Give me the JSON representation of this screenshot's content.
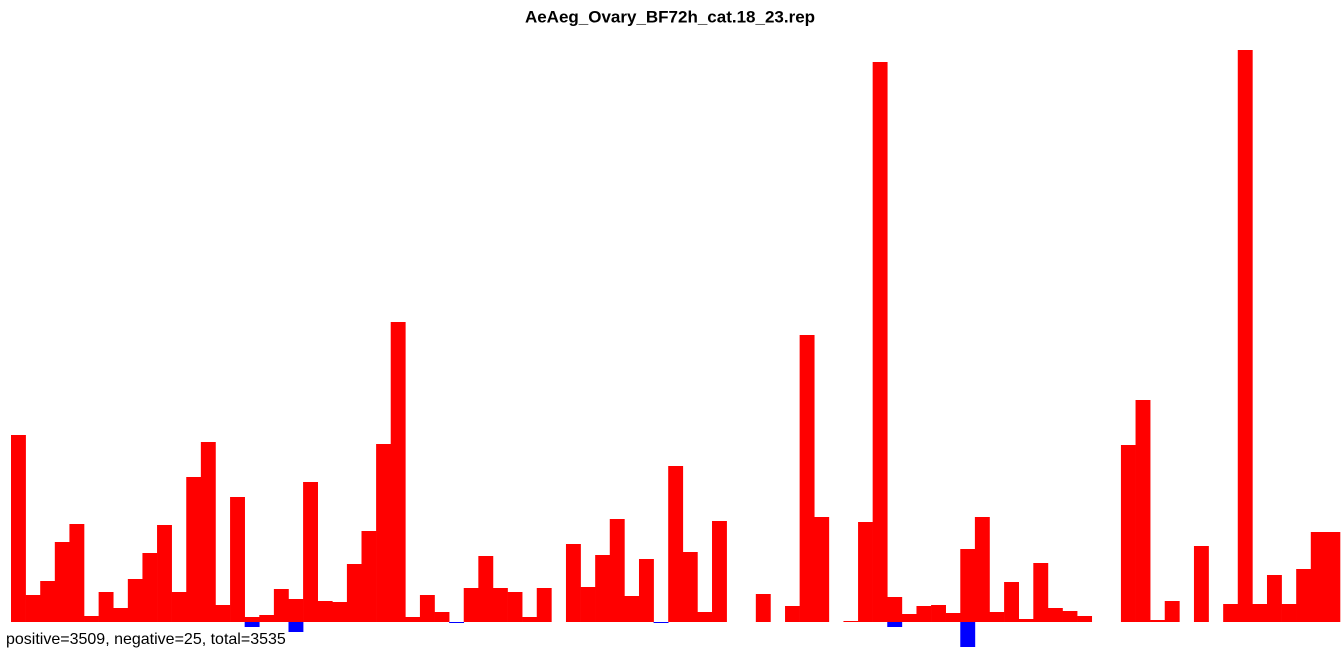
{
  "chart_data": {
    "type": "bar",
    "title": "AeAeg_Ovary_BF72h_cat.18_23.rep",
    "annotation": "positive=3509, negative=25, total=3535",
    "ylim": [
      -29,
      580
    ],
    "series": [
      {
        "color": "#ff0000",
        "values": [
          187,
          27,
          41,
          80,
          98,
          6,
          30,
          14,
          43,
          69,
          97,
          30,
          145,
          180,
          17,
          125,
          5,
          7,
          33,
          23,
          140,
          21,
          20,
          58,
          91,
          178,
          300,
          5,
          27,
          10,
          0,
          34,
          66,
          34,
          30,
          5,
          34,
          0,
          78,
          35,
          67,
          103,
          26,
          63,
          0,
          156,
          70,
          10,
          101,
          0,
          0,
          28,
          0,
          16,
          287,
          105,
          0,
          1,
          100,
          560,
          25,
          8,
          16,
          17,
          9,
          73,
          105,
          10,
          40,
          3,
          59,
          14,
          11,
          6,
          0,
          0,
          177,
          222,
          2,
          21,
          0,
          76,
          0,
          18,
          572,
          18,
          47,
          18,
          53,
          90,
          90
        ]
      },
      {
        "color": "#0000ff",
        "values": [
          0,
          0,
          0,
          0,
          0,
          0,
          0,
          0,
          0,
          0,
          0,
          0,
          0,
          0,
          0,
          0,
          -5,
          0,
          0,
          -10,
          0,
          0,
          0,
          0,
          0,
          0,
          0,
          0,
          0,
          0,
          -1,
          0,
          0,
          0,
          0,
          0,
          0,
          0,
          0,
          0,
          0,
          0,
          0,
          0,
          -1,
          0,
          0,
          0,
          0,
          0,
          0,
          0,
          0,
          0,
          0,
          0,
          0,
          0,
          0,
          0,
          -5,
          0,
          0,
          0,
          0,
          -25,
          0,
          0,
          0,
          0,
          0,
          0,
          0,
          0,
          0,
          0,
          0,
          0,
          0,
          0,
          0,
          0,
          0,
          0,
          0,
          0,
          0,
          0,
          0,
          0,
          0
        ]
      }
    ]
  }
}
